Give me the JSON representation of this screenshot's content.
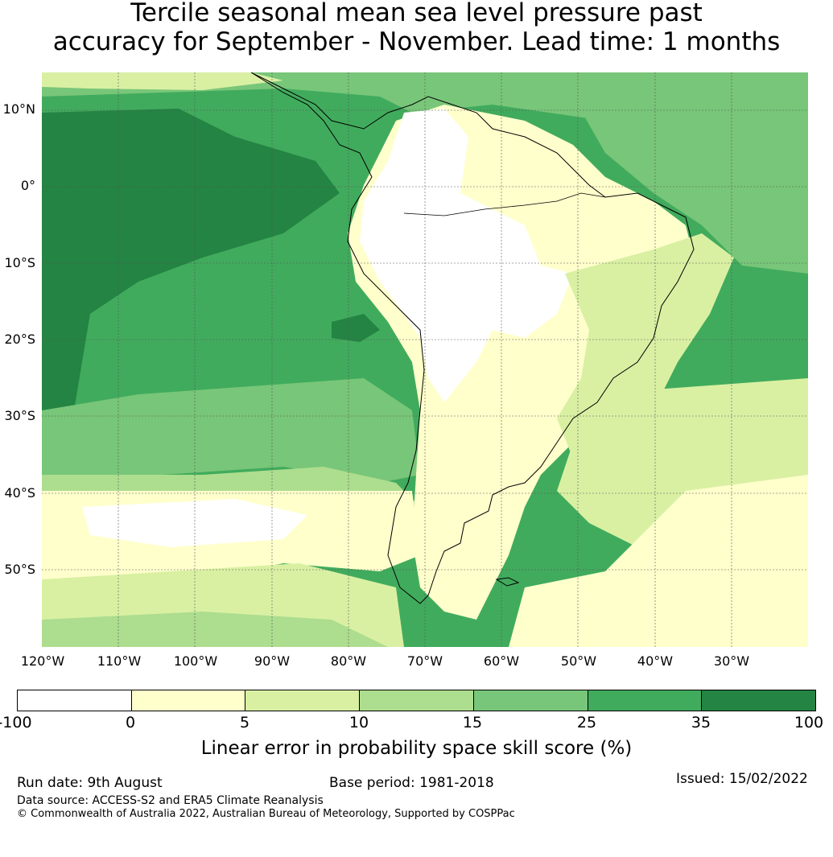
{
  "title": {
    "line1": "Tercile seasonal mean sea level pressure past",
    "line2": "accuracy for September - November. Lead time: 1 months"
  },
  "map": {
    "region": "South America and surrounding oceans",
    "latitude_labels": [
      "10°N",
      "0°",
      "10°S",
      "20°S",
      "30°S",
      "40°S",
      "50°S"
    ],
    "longitude_labels": [
      "120°W",
      "110°W",
      "100°W",
      "90°W",
      "80°W",
      "70°W",
      "60°W",
      "50°W",
      "40°W",
      "30°W"
    ],
    "gridlines": true,
    "coastlines": true
  },
  "colorbar": {
    "label": "Linear error in probability space skill score (%)",
    "ticks": [
      "-100",
      "0",
      "5",
      "10",
      "15",
      "25",
      "35",
      "100"
    ],
    "colors": [
      "#ffffff",
      "#ffffcc",
      "#d9f0a3",
      "#addd8e",
      "#78c679",
      "#41ab5d",
      "#238443"
    ]
  },
  "footer": {
    "run_date": "Run date: 9th August",
    "base_period": "Base period: 1981-2018",
    "issued": "Issued: 15/02/2022",
    "data_source": "Data source: ACCESS-S2 and ERA5 Climate Reanalysis",
    "copyright": "© Commonwealth of Australia 2022, Australian Bureau of Meteorology, Supported by COSPPac"
  }
}
